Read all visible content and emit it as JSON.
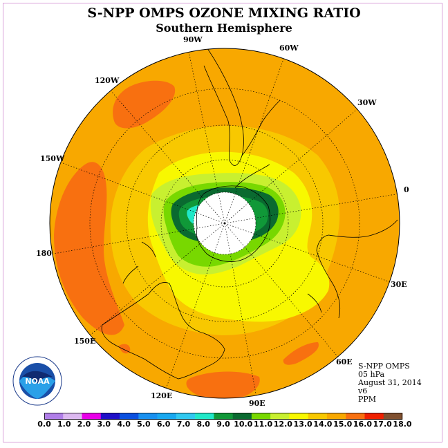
{
  "header": {
    "title": "S-NPP OMPS OZONE MIXING RATIO",
    "subtitle": "Southern Hemisphere"
  },
  "map": {
    "projection": "polar-stereographic-south",
    "longitude_labels": {
      "lon_90w": "90W",
      "lon_60w": "60W",
      "lon_120w": "120W",
      "lon_30w": "30W",
      "lon_150w": "150W",
      "lon_0": "0",
      "lon_180": "180",
      "lon_30e": "30E",
      "lon_150e": "150E",
      "lon_60e": "60E",
      "lon_120e": "120E",
      "lon_90e": "90E"
    }
  },
  "info": {
    "instrument": "S-NPP OMPS",
    "level": "05 hPa",
    "date": "August 31, 2014",
    "version": "v6",
    "units": "PPM"
  },
  "logo": {
    "text": "NOAA",
    "icon": "noaa-logo-icon"
  },
  "colorbar": {
    "labels": [
      "0.0",
      "1.0",
      "2.0",
      "3.0",
      "4.0",
      "5.0",
      "6.0",
      "7.0",
      "8.0",
      "9.0",
      "10.0",
      "11.0",
      "12.0",
      "13.0",
      "14.0",
      "15.0",
      "16.0",
      "17.0",
      "18.0"
    ],
    "colors": [
      "#b07ee8",
      "#dcb8f0",
      "#e800e8",
      "#2010c8",
      "#0a50e0",
      "#1890f0",
      "#18a8f0",
      "#30c8f0",
      "#20e8c8",
      "#109838",
      "#0a6a30",
      "#78d800",
      "#c8f030",
      "#f8f800",
      "#f8c800",
      "#f8a800",
      "#f87010",
      "#f02000",
      "#805030"
    ]
  }
}
